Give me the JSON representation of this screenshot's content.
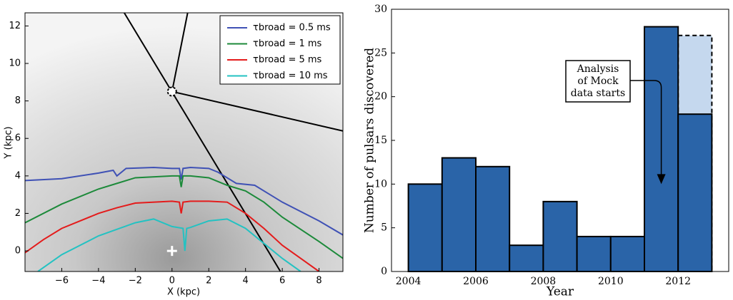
{
  "chart_data": [
    {
      "type": "line",
      "xlabel": "X (kpc)",
      "ylabel": "Y (kpc)",
      "xlim": [
        -8,
        9.3
      ],
      "ylim": [
        -1.1,
        12.7
      ],
      "xticks": [
        {
          "value": -6,
          "label": "−6"
        },
        {
          "value": -4,
          "label": "−4"
        },
        {
          "value": -2,
          "label": "−2"
        },
        0,
        2,
        4,
        6,
        8
      ],
      "yticks": [
        0,
        2,
        4,
        6,
        8,
        10,
        12
      ],
      "legend": "upper right",
      "series": [
        {
          "name": "τbroad = 0.5 ms",
          "color": "#3f51b5",
          "x": [
            -8,
            -6,
            -4,
            -3.2,
            -3,
            -2.5,
            -1,
            0,
            0.4,
            0.5,
            0.6,
            1,
            2,
            2.5,
            3.5,
            4.5,
            6,
            8,
            9.3
          ],
          "values": [
            3.75,
            3.85,
            4.15,
            4.3,
            4.0,
            4.4,
            4.45,
            4.4,
            4.4,
            3.8,
            4.4,
            4.45,
            4.4,
            4.2,
            3.6,
            3.5,
            2.6,
            1.6,
            0.85
          ]
        },
        {
          "name": "τbroad = 1 ms",
          "color": "#1c8a3a",
          "x": [
            -8,
            -6,
            -4,
            -3,
            -2,
            0,
            0.4,
            0.5,
            0.6,
            1,
            2,
            3,
            4,
            5,
            6,
            8,
            9.3
          ],
          "values": [
            1.5,
            2.5,
            3.3,
            3.6,
            3.9,
            4.0,
            4.0,
            3.4,
            4.0,
            4.0,
            3.9,
            3.5,
            3.2,
            2.6,
            1.8,
            0.5,
            -0.4
          ]
        },
        {
          "name": "τbroad = 5 ms",
          "color": "#e41b1b",
          "x": [
            -8,
            -7,
            -6,
            -4,
            -3,
            -2,
            0,
            0.4,
            0.5,
            0.6,
            1,
            2,
            3,
            4,
            5,
            6,
            7,
            8
          ],
          "values": [
            -0.1,
            0.6,
            1.2,
            2.0,
            2.3,
            2.55,
            2.65,
            2.6,
            2.0,
            2.6,
            2.65,
            2.65,
            2.6,
            2.0,
            1.2,
            0.3,
            -0.4,
            -1.1
          ]
        },
        {
          "name": "τbroad = 10 ms",
          "color": "#23c2c2",
          "x": [
            -7.3,
            -6,
            -4,
            -2,
            -1,
            0,
            0.6,
            0.7,
            0.8,
            1,
            2,
            3,
            4,
            5,
            6,
            7
          ],
          "values": [
            -1.1,
            -0.2,
            0.8,
            1.5,
            1.7,
            1.3,
            1.2,
            0,
            1.2,
            1.25,
            1.6,
            1.7,
            1.2,
            0.4,
            -0.4,
            -1.1
          ]
        }
      ],
      "sightlines": [
        {
          "x": [
            -2.6,
            5.9
          ],
          "y": [
            12.7,
            -1.1
          ]
        },
        {
          "x": [
            0,
            0.85
          ],
          "y": [
            8.5,
            12.7
          ]
        },
        {
          "x": [
            0,
            9.3
          ],
          "y": [
            8.5,
            6.4
          ]
        }
      ],
      "sun": {
        "x": 0,
        "y": 8.5
      },
      "center": {
        "x": 0,
        "y": 0
      }
    },
    {
      "type": "histogram",
      "xlabel": "Year",
      "ylabel": "Number of pulsars discovered",
      "bins": [
        2004,
        2005,
        2006,
        2007,
        2008,
        2009,
        2010,
        2011,
        2012,
        2013
      ],
      "values": [
        10,
        13,
        12,
        3,
        8,
        4,
        4,
        28,
        18
      ],
      "color": "#2a64a8",
      "dashed_bar": {
        "bin": [
          2012,
          2013
        ],
        "value": 27,
        "color": "#c5d8ee"
      },
      "xlim": [
        2003.5,
        2013.5
      ],
      "ylim": [
        0,
        30
      ],
      "xticks": [
        2004,
        2006,
        2008,
        2010,
        2012
      ],
      "yticks": [
        0,
        5,
        10,
        15,
        20,
        25,
        30
      ],
      "annotation": {
        "lines": [
          "Analysis",
          "of Mock",
          "data starts"
        ],
        "x": 2011.5,
        "y": 10
      }
    }
  ]
}
